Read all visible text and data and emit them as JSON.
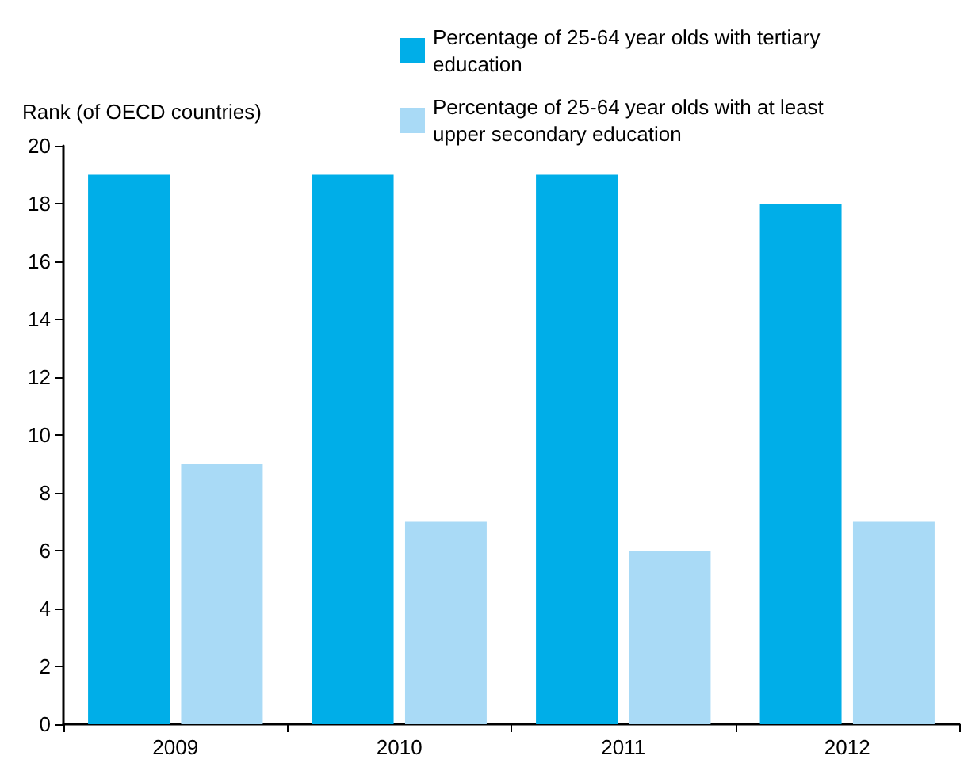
{
  "chart_data": {
    "type": "bar",
    "ylabel": "Rank (of OECD countries)",
    "categories": [
      "2009",
      "2010",
      "2011",
      "2012"
    ],
    "series": [
      {
        "name": "Percentage of 25-64 year olds with tertiary education",
        "color": "#00aee8",
        "values": [
          19,
          19,
          19,
          18
        ]
      },
      {
        "name": "Percentage of 25-64 year olds with at least upper secondary education",
        "color": "#a9daf6",
        "values": [
          9,
          7,
          6,
          7
        ]
      }
    ],
    "ylim": [
      0,
      20
    ],
    "yticks": [
      0,
      2,
      4,
      6,
      8,
      10,
      12,
      14,
      16,
      18,
      20
    ],
    "grid": false,
    "legend": "top right"
  }
}
